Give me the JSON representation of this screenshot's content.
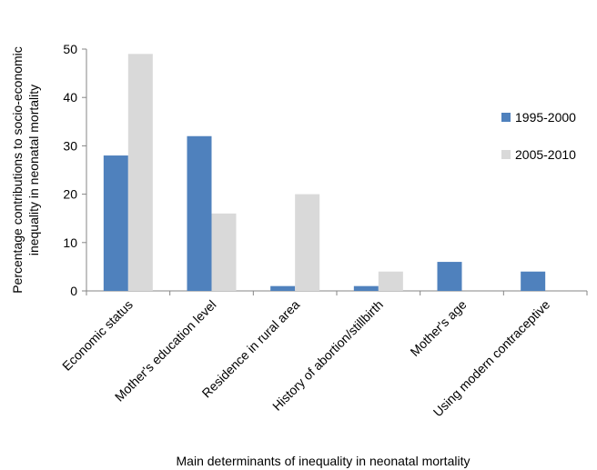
{
  "chart_data": {
    "type": "bar",
    "categories": [
      "Economic status",
      "Mother's education level",
      "Residence in rural area",
      "History of abortion/stillbirth",
      "Mother's age",
      "Using modern contraceptive"
    ],
    "series": [
      {
        "name": "1995-2000",
        "color": "#4f81bd",
        "values": [
          28,
          32,
          1,
          1,
          6,
          4
        ]
      },
      {
        "name": "2005-2010",
        "color": "#d9d9d9",
        "values": [
          49,
          16,
          20,
          4,
          0,
          0
        ]
      }
    ],
    "xlabel": "Main determinants of inequality in neonatal mortality",
    "ylabel_lines": [
      "Percentage contributions to socio-economic",
      "inequality in neonatal mortality"
    ],
    "ylim": [
      0,
      50
    ],
    "yticks": [
      0,
      10,
      20,
      30,
      40,
      50
    ],
    "grid": false,
    "legend_position": "right"
  }
}
